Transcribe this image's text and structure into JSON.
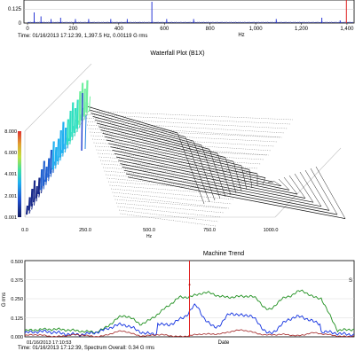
{
  "spectrum": {
    "yticks": [
      "0",
      "0.125"
    ],
    "xticks": [
      "0",
      "200",
      "400",
      "600",
      "800",
      "1,000",
      "1,200",
      "1,400"
    ],
    "xunit": "Hz",
    "peaks": [
      {
        "f": 29,
        "a": 0.08
      },
      {
        "f": 59,
        "a": 0.05
      },
      {
        "f": 103,
        "a": 0.03
      },
      {
        "f": 145,
        "a": 0.04
      },
      {
        "f": 210,
        "a": 0.03
      },
      {
        "f": 268,
        "a": 0.03
      },
      {
        "f": 365,
        "a": 0.03
      },
      {
        "f": 437,
        "a": 0.03
      },
      {
        "f": 545,
        "a": 0.16
      },
      {
        "f": 610,
        "a": 0.03
      },
      {
        "f": 728,
        "a": 0.03
      },
      {
        "f": 1090,
        "a": 0.03
      },
      {
        "f": 1290,
        "a": 0.04
      },
      {
        "f": 1370,
        "a": 0.02
      }
    ],
    "cursor_hz": 1397.5,
    "readout": "Time: 01/16/2013 17:12:39, 1,397.5 Hz, 0.00119 G rms"
  },
  "waterfall": {
    "title": "Waterfall Plot (B1X)",
    "yticks": [
      "8.000",
      "6.000",
      "4.001",
      "2.001",
      "0.001"
    ],
    "xticks": [
      "0.0",
      "250.0",
      "500.0",
      "750.0",
      "1000.0"
    ],
    "xunit": "Hz",
    "colors": [
      "#1a2a8a",
      "#2060d0",
      "#20b0f0",
      "#30e0c0",
      "#70f0a0"
    ]
  },
  "trend": {
    "title": "Machine Trend",
    "ylabel": "G rms",
    "yticks": [
      "0.500",
      "0.375",
      "0.250",
      "0.125",
      "0.000"
    ],
    "xlabel": "Date",
    "start_label": "01/16/2013 17:10:53",
    "readout": "Time: 01/16/2013 17:12:39, Spectrum Overall: 0.34 G rms",
    "cursor_label": "a",
    "right_marker": "S",
    "cursor_pos": 0.5,
    "series": [
      {
        "name": "green",
        "color": "#209020"
      },
      {
        "name": "blue",
        "color": "#1030e0"
      },
      {
        "name": "red",
        "color": "#a02020"
      }
    ]
  }
}
